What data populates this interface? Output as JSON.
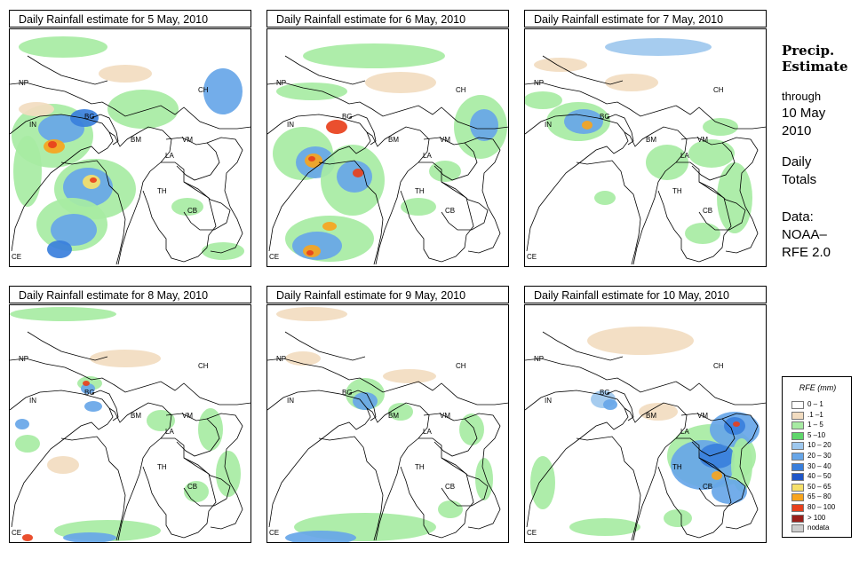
{
  "panels": [
    {
      "title": "Daily Rainfall estimate for  5 May, 2010"
    },
    {
      "title": "Daily Rainfall estimate for  6 May, 2010"
    },
    {
      "title": "Daily Rainfall estimate for  7 May, 2010"
    },
    {
      "title": "Daily Rainfall estimate for  8 May, 2010"
    },
    {
      "title": "Daily Rainfall estimate for  9 May, 2010"
    },
    {
      "title": "Daily Rainfall estimate for  10 May, 2010"
    }
  ],
  "country_labels": {
    "np": "NP",
    "ch": "CH",
    "in": "IN",
    "bg": "BG",
    "bm": "BM",
    "vm": "VM",
    "la": "LA",
    "th": "TH",
    "cb": "CB",
    "ce": "CE"
  },
  "side": {
    "title_line1": "Precip.",
    "title_line2": "Estimate",
    "through": "through",
    "date_line1": "10 May",
    "date_line2": "2010",
    "totals_line1": "Daily",
    "totals_line2": "Totals",
    "data_line1": "Data:",
    "data_line2": "NOAA–",
    "data_line3": "RFE 2.0"
  },
  "legend": {
    "title": "RFE (mm)",
    "items": [
      {
        "label": "0 – 1",
        "color": "#ffffff"
      },
      {
        "label": ".1 –1",
        "color": "#f2dcc0"
      },
      {
        "label": "1 – 5",
        "color": "#a7eba3"
      },
      {
        "label": "5 –10",
        "color": "#5fd66b"
      },
      {
        "label": "10 – 20",
        "color": "#9ec8ee"
      },
      {
        "label": "20 – 30",
        "color": "#67a6e8"
      },
      {
        "label": "30 – 40",
        "color": "#3a7fdc"
      },
      {
        "label": "40 – 50",
        "color": "#1f56c8"
      },
      {
        "label": "50 – 65",
        "color": "#f6e06a"
      },
      {
        "label": "65 – 80",
        "color": "#f7a41e"
      },
      {
        "label": "80 – 100",
        "color": "#e8401c"
      },
      {
        "label": "> 100",
        "color": "#9a1f1a"
      },
      {
        "label": "nodata",
        "color": "#cccccc"
      }
    ]
  },
  "palette": {
    "beige": "#f2dcc0",
    "light_green": "#a7eba3",
    "green": "#5fd66b",
    "light_blue": "#9ec8ee",
    "blue": "#67a6e8",
    "mid_blue": "#3a7fdc",
    "dark_blue": "#1f56c8",
    "yellow": "#f6e06a",
    "orange": "#f7a41e",
    "red": "#e8401c",
    "dark_red": "#9a1f1a"
  }
}
